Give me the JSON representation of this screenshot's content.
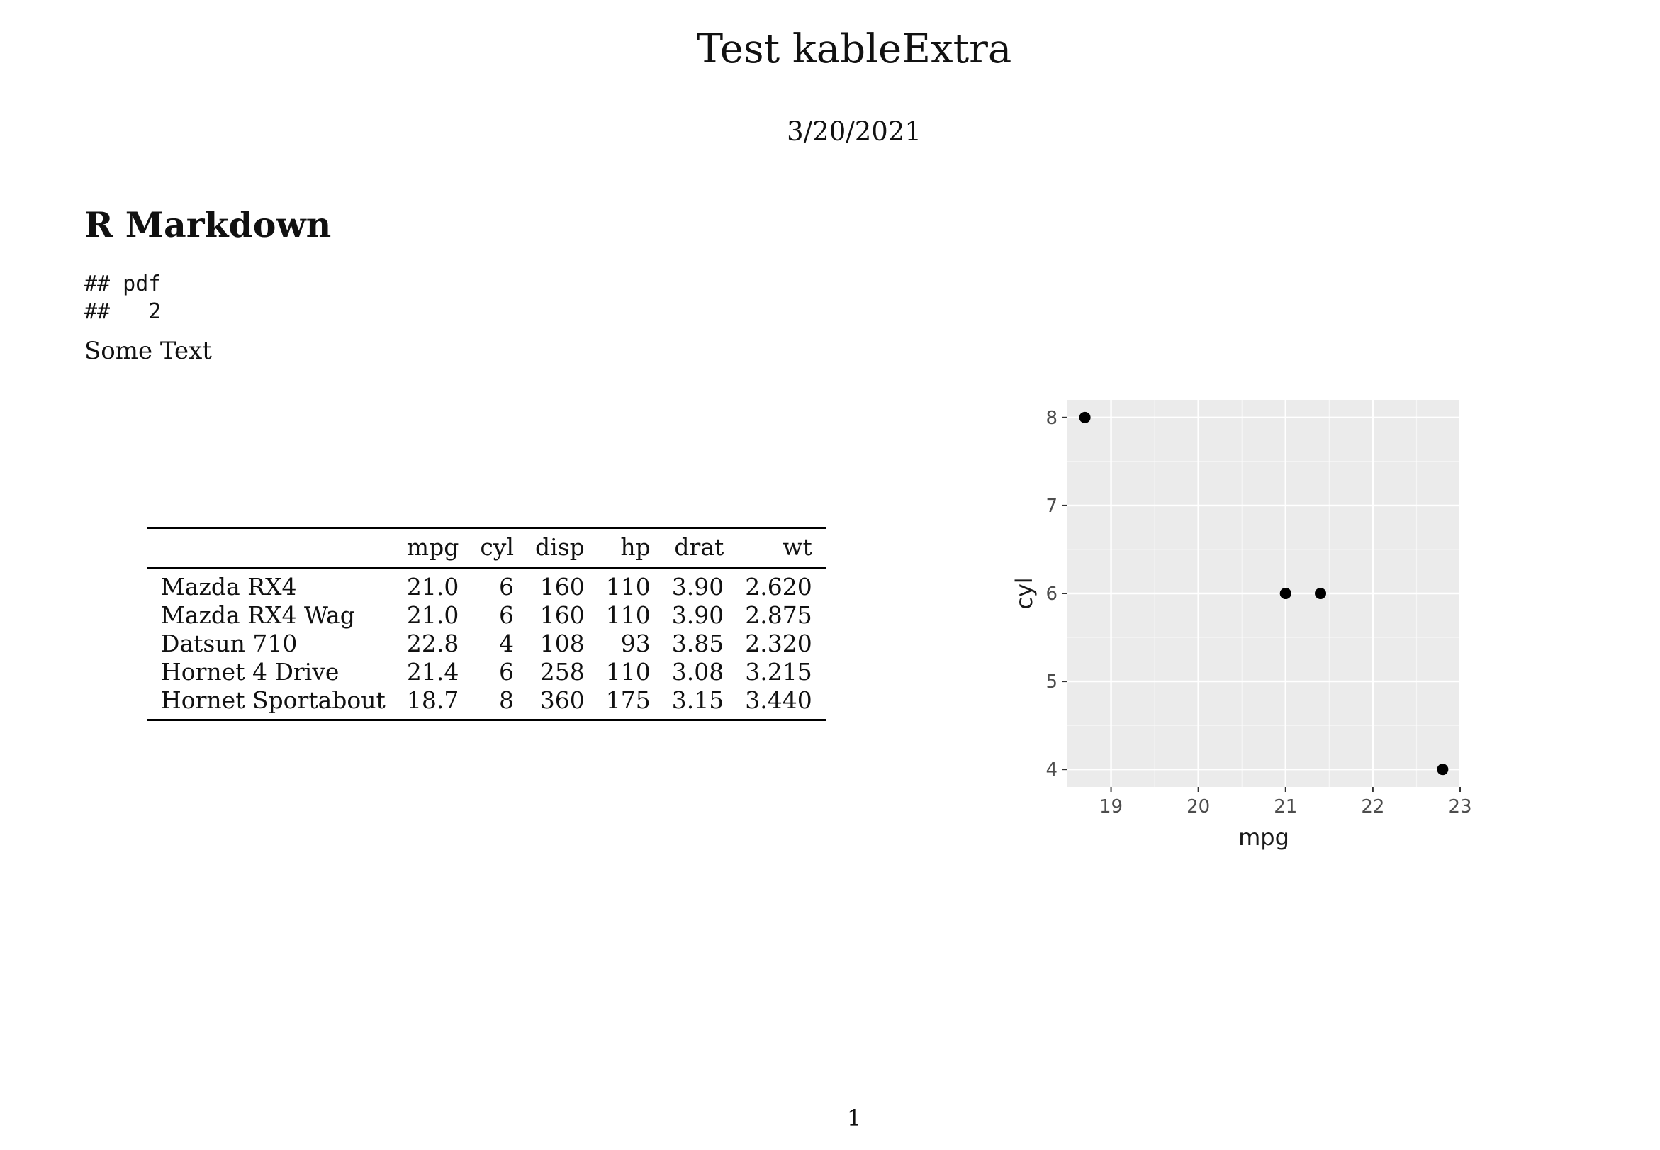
{
  "document": {
    "title": "Test kableExtra",
    "date": "3/20/2021",
    "section_heading": "R Markdown",
    "code_output": "## pdf\n##   2",
    "body_text": "Some Text",
    "page_number": "1"
  },
  "table": {
    "headers": [
      "",
      "mpg",
      "cyl",
      "disp",
      "hp",
      "drat",
      "wt"
    ],
    "rows": [
      [
        "Mazda RX4",
        "21.0",
        "6",
        "160",
        "110",
        "3.90",
        "2.620"
      ],
      [
        "Mazda RX4 Wag",
        "21.0",
        "6",
        "160",
        "110",
        "3.90",
        "2.875"
      ],
      [
        "Datsun 710",
        "22.8",
        "4",
        "108",
        "93",
        "3.85",
        "2.320"
      ],
      [
        "Hornet 4 Drive",
        "21.4",
        "6",
        "258",
        "110",
        "3.08",
        "3.215"
      ],
      [
        "Hornet Sportabout",
        "18.7",
        "8",
        "360",
        "175",
        "3.15",
        "3.440"
      ]
    ]
  },
  "chart_data": {
    "type": "scatter",
    "xlabel": "mpg",
    "ylabel": "cyl",
    "xlim": [
      18.5,
      23
    ],
    "ylim": [
      3.8,
      8.2
    ],
    "xticks": [
      19,
      20,
      21,
      22,
      23
    ],
    "yticks": [
      4,
      5,
      6,
      7,
      8
    ],
    "grid": true,
    "colors": {
      "panel": "#ebebeb",
      "grid_major": "#ffffff",
      "point": "#000000"
    },
    "points": [
      {
        "x": 21.0,
        "y": 6
      },
      {
        "x": 21.0,
        "y": 6
      },
      {
        "x": 22.8,
        "y": 4
      },
      {
        "x": 21.4,
        "y": 6
      },
      {
        "x": 18.7,
        "y": 8
      }
    ]
  }
}
